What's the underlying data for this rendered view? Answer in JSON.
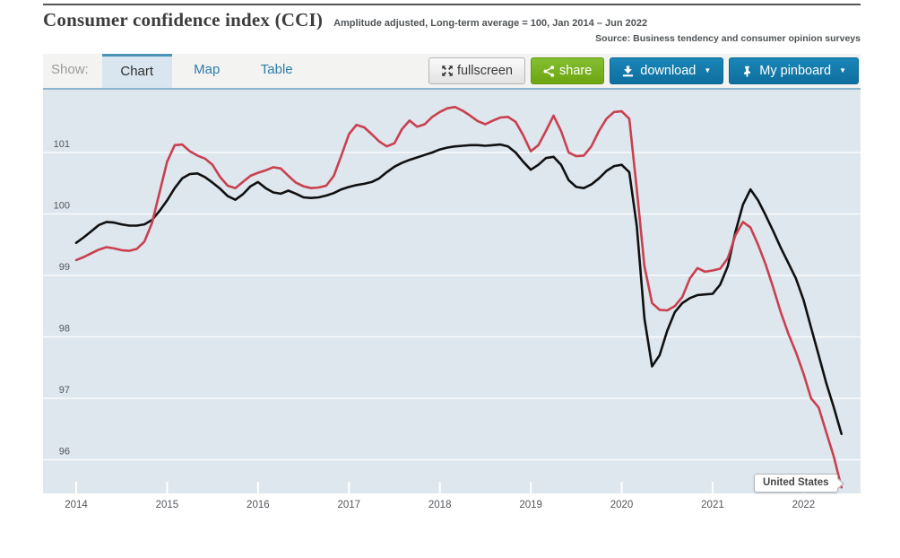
{
  "header": {
    "title": "Consumer confidence index (CCI)",
    "subtitle": "Amplitude adjusted, Long-term average = 100, Jan 2014 – Jun 2022",
    "source": "Source: Business tendency and consumer opinion surveys"
  },
  "toolbar": {
    "show_label": "Show:",
    "tabs": [
      {
        "label": "Chart",
        "active": true
      },
      {
        "label": "Map",
        "active": false
      },
      {
        "label": "Table",
        "active": false
      }
    ],
    "buttons": {
      "fullscreen": "fullscreen",
      "share": "share",
      "download": "download",
      "pinboard": "My pinboard",
      "caret": "▼"
    }
  },
  "chart_data": {
    "type": "line",
    "title": "Consumer confidence index (CCI)",
    "x_frequency": "monthly",
    "x_range": [
      "Jan 2014",
      "Jun 2022"
    ],
    "x_ticks": [
      2014,
      2015,
      2016,
      2017,
      2018,
      2019,
      2020,
      2021,
      2022
    ],
    "y_ticks": [
      96,
      97,
      98,
      99,
      100,
      101
    ],
    "ylim": [
      95.4,
      102
    ],
    "grid": "horizontal-white-lines",
    "legend_position": "none",
    "background": "#dee7ee",
    "tooltip": {
      "label": "United States"
    },
    "series": [
      {
        "name": "United States",
        "color": "#c9404f",
        "values": [
          99.25,
          99.3,
          99.36,
          99.42,
          99.46,
          99.44,
          99.41,
          99.4,
          99.43,
          99.55,
          99.85,
          100.35,
          100.85,
          101.12,
          101.13,
          101.02,
          100.95,
          100.9,
          100.8,
          100.6,
          100.46,
          100.42,
          100.52,
          100.62,
          100.67,
          100.71,
          100.76,
          100.74,
          100.62,
          100.51,
          100.45,
          100.42,
          100.43,
          100.46,
          100.62,
          100.95,
          101.3,
          101.45,
          101.41,
          101.3,
          101.18,
          101.1,
          101.15,
          101.38,
          101.52,
          101.42,
          101.46,
          101.58,
          101.66,
          101.72,
          101.74,
          101.68,
          101.6,
          101.51,
          101.46,
          101.52,
          101.57,
          101.58,
          101.5,
          101.28,
          101.02,
          101.12,
          101.35,
          101.6,
          101.35,
          101.0,
          100.94,
          100.95,
          101.1,
          101.35,
          101.55,
          101.66,
          101.67,
          101.55,
          100.4,
          99.15,
          98.55,
          98.44,
          98.43,
          98.5,
          98.65,
          98.95,
          99.12,
          99.06,
          99.08,
          99.11,
          99.28,
          99.65,
          99.87,
          99.78,
          99.5,
          99.18,
          98.8,
          98.4,
          98.05,
          97.75,
          97.4,
          97.0,
          96.85,
          96.45,
          96.05,
          95.55
        ]
      },
      {
        "name": "",
        "color": "#101010",
        "values": [
          99.53,
          99.62,
          99.72,
          99.82,
          99.87,
          99.86,
          99.83,
          99.81,
          99.81,
          99.83,
          99.9,
          100.05,
          100.22,
          100.42,
          100.58,
          100.65,
          100.66,
          100.6,
          100.51,
          100.41,
          100.29,
          100.23,
          100.32,
          100.45,
          100.52,
          100.42,
          100.35,
          100.33,
          100.38,
          100.33,
          100.27,
          100.26,
          100.27,
          100.3,
          100.34,
          100.4,
          100.44,
          100.47,
          100.49,
          100.52,
          100.58,
          100.68,
          100.77,
          100.83,
          100.88,
          100.92,
          100.96,
          101.0,
          101.05,
          101.08,
          101.1,
          101.11,
          101.12,
          101.12,
          101.11,
          101.12,
          101.13,
          101.1,
          101.0,
          100.85,
          100.72,
          100.8,
          100.91,
          100.93,
          100.8,
          100.55,
          100.44,
          100.42,
          100.48,
          100.58,
          100.7,
          100.78,
          100.8,
          100.68,
          99.8,
          98.3,
          97.52,
          97.7,
          98.1,
          98.4,
          98.55,
          98.63,
          98.68,
          98.69,
          98.7,
          98.85,
          99.15,
          99.7,
          100.15,
          100.4,
          100.22,
          99.98,
          99.72,
          99.45,
          99.2,
          98.95,
          98.6,
          98.15,
          97.7,
          97.25,
          96.85,
          96.42
        ]
      }
    ]
  },
  "colors": {
    "accent_blue": "#1a86b8",
    "accent_green": "#76b420",
    "tab_active_border": "#4a93b5",
    "chart_background": "#dee7ee",
    "toolbar_background": "#f3f3f1",
    "series_red": "#c9404f",
    "series_black": "#101010"
  }
}
